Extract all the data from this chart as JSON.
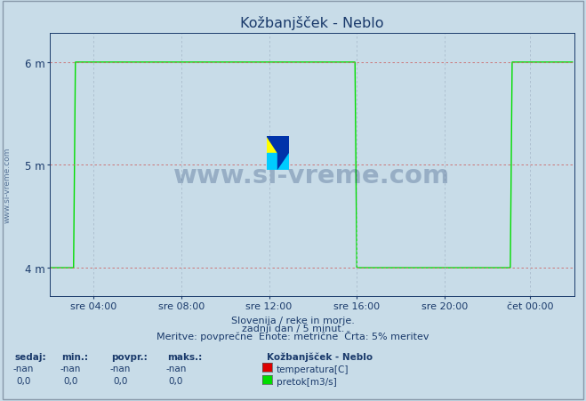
{
  "title": "Kožbanjšček - Neblo",
  "bg_color": "#c8dce8",
  "plot_bg_color": "#c8dce8",
  "line_color_pretok": "#00dd00",
  "line_color_temp": "#dd0000",
  "yticks": [
    4,
    5,
    6
  ],
  "ytick_labels": [
    "4 m",
    "5 m",
    "6 m"
  ],
  "ylim": [
    3.72,
    6.28
  ],
  "xlim": [
    0,
    287
  ],
  "xtick_positions": [
    24,
    72,
    120,
    168,
    216,
    263
  ],
  "xtick_labels": [
    "sre 04:00",
    "sre 08:00",
    "sre 12:00",
    "sre 16:00",
    "sre 20:00",
    "čet 00:00"
  ],
  "footer_lines": [
    "Slovenija / reke in morje.",
    "zadnji dan / 5 minut.",
    "Meritve: povprečne  Enote: metrične  Črta: 5% meritev"
  ],
  "legend_title": "Kožbanjšček - Neblo",
  "legend_items": [
    {
      "label": "temperatura[C]",
      "color": "#dd0000"
    },
    {
      "label": "pretok[m3/s]",
      "color": "#00dd00"
    }
  ],
  "table_headers": [
    "sedaj:",
    "min.:",
    "povpr.:",
    "maks.:"
  ],
  "table_row_temp": [
    "-nan",
    "-nan",
    "-nan",
    "-nan"
  ],
  "table_row_pretok": [
    "0,0",
    "0,0",
    "0,0",
    "0,0"
  ],
  "watermark_text": "www.si-vreme.com",
  "watermark_color": "#1a3a6b",
  "watermark_alpha": 0.28,
  "title_color": "#1a3a6b",
  "axis_color": "#1a3a6b",
  "tick_color": "#1a3a6b",
  "grid_color_h": "#cc6666",
  "grid_color_v": "#aabbcc",
  "n_points": 287,
  "pretok_up1_start": 14,
  "pretok_up1_end": 168,
  "pretok_up2_start": 253,
  "pretok_up2_end": 287,
  "pretok_base": 4.0,
  "pretok_high": 6.0
}
